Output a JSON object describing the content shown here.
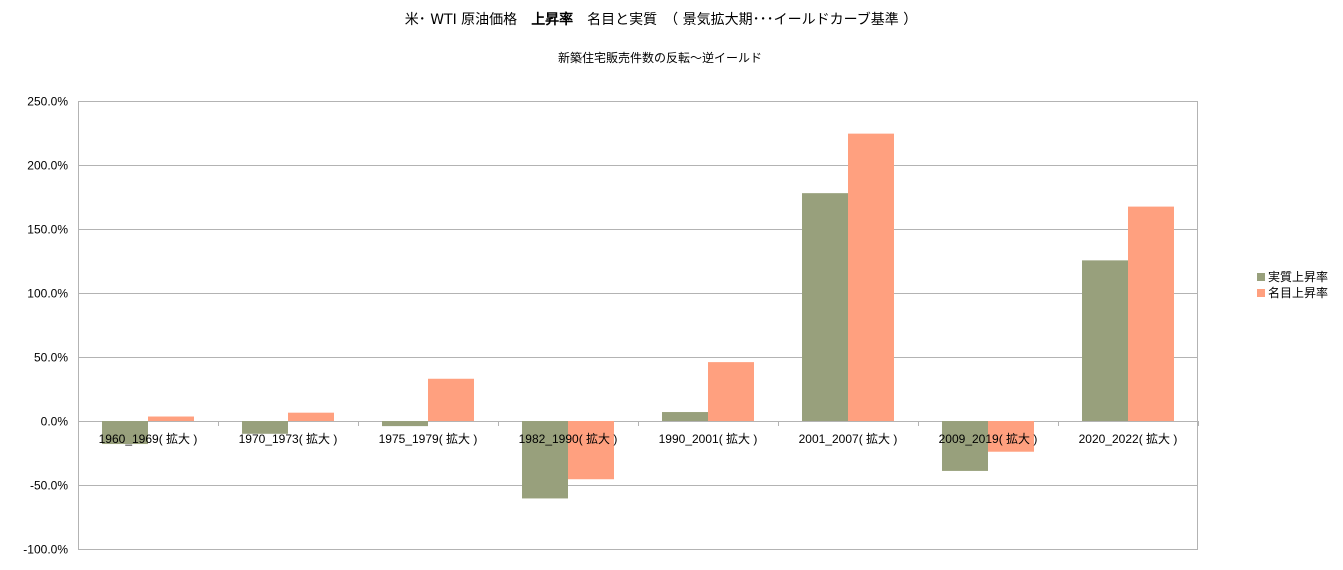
{
  "chart_data": {
    "type": "bar",
    "title_parts": [
      "米･ WTI 原油価格　",
      "上昇率",
      "　名目と実質　（ 景気拡大期･･･イールドカーブ基準 ）"
    ],
    "subtitle": "新築住宅販売件数の反転～逆イールド",
    "categories": [
      "1960_1969( 拡大 )",
      "1970_1973( 拡大 )",
      "1975_1979( 拡大 )",
      "1982_1990( 拡大 )",
      "1990_2001( 拡大 )",
      "2001_2007( 拡大 )",
      "2009_2019( 拡大 )",
      "2020_2022( 拡大 )"
    ],
    "series": [
      {
        "name": "実質上昇率",
        "color": "#98a07c",
        "values": [
          -18.0,
          -10.0,
          -4.0,
          -60.5,
          7.0,
          178.0,
          -39.0,
          125.5
        ]
      },
      {
        "name": "名目上昇率",
        "color": "#ffa07f",
        "values": [
          3.5,
          6.5,
          33.0,
          -45.5,
          46.0,
          224.5,
          -24.0,
          167.5
        ]
      }
    ],
    "ylim": [
      -100,
      250
    ],
    "y_ticks": [
      250,
      200,
      150,
      100,
      50,
      0,
      -50,
      -100
    ],
    "y_tick_labels": [
      "250.0%",
      "200.0%",
      "150.0%",
      "100.0%",
      "50.0%",
      "0.0%",
      "-50.0%",
      "-100.0%"
    ],
    "grid": true,
    "legend_position": "right"
  }
}
